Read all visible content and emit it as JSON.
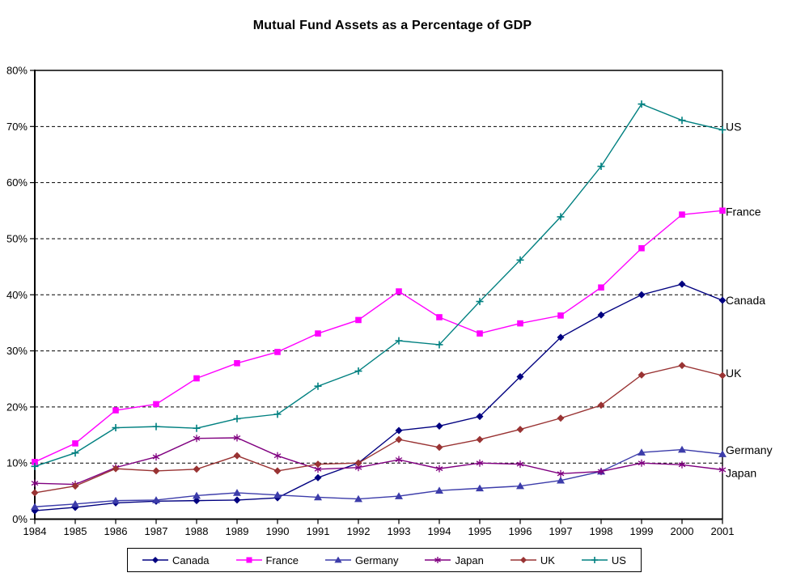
{
  "chart_data": {
    "type": "line",
    "title": "Mutual Fund Assets as a Percentage of GDP",
    "xlabel": "",
    "ylabel": "",
    "categories": [
      "1984",
      "1985",
      "1986",
      "1987",
      "1988",
      "1989",
      "1990",
      "1991",
      "1992",
      "1993",
      "1994",
      "1995",
      "1996",
      "1997",
      "1998",
      "1999",
      "2000",
      "2001"
    ],
    "y_tick_labels": [
      "0%",
      "10%",
      "20%",
      "30%",
      "40%",
      "50%",
      "60%",
      "70%",
      "80%"
    ],
    "ylim": [
      0,
      80
    ],
    "grid": "horizontal-dashed",
    "grid_color": "#000000",
    "background_color": "#FFFFFF",
    "legend_position": "bottom",
    "series": [
      {
        "name": "Canada",
        "color": "#000080",
        "marker": "diamond",
        "values": [
          1.5,
          2.1,
          2.9,
          3.2,
          3.3,
          3.4,
          3.8,
          7.4,
          10.0,
          15.8,
          16.6,
          18.3,
          25.4,
          32.4,
          36.4,
          40.0,
          41.9,
          39.0
        ]
      },
      {
        "name": "France",
        "color": "#FF00FF",
        "marker": "square",
        "values": [
          10.2,
          13.5,
          19.4,
          20.5,
          25.1,
          27.8,
          29.8,
          33.1,
          35.5,
          40.6,
          36.0,
          33.1,
          34.9,
          36.3,
          41.3,
          48.3,
          54.3,
          55.0
        ]
      },
      {
        "name": "Germany",
        "color": "#3C3CAA",
        "marker": "triangle",
        "values": [
          2.2,
          2.7,
          3.3,
          3.4,
          4.2,
          4.7,
          4.3,
          3.9,
          3.6,
          4.1,
          5.1,
          5.5,
          5.9,
          6.9,
          8.5,
          11.9,
          12.4,
          11.6
        ]
      },
      {
        "name": "Japan",
        "color": "#800080",
        "marker": "asterisk",
        "values": [
          6.4,
          6.2,
          9.2,
          11.1,
          14.4,
          14.5,
          11.3,
          8.9,
          9.2,
          10.6,
          9.0,
          10.0,
          9.8,
          8.1,
          8.5,
          10.0,
          9.7,
          8.8
        ]
      },
      {
        "name": "UK",
        "color": "#993333",
        "marker": "diamond",
        "values": [
          4.7,
          5.9,
          9.0,
          8.6,
          8.9,
          11.3,
          8.6,
          9.8,
          10.0,
          14.2,
          12.8,
          14.2,
          16.0,
          18.0,
          20.3,
          25.7,
          27.4,
          25.6
        ]
      },
      {
        "name": "US",
        "color": "#008080",
        "marker": "plus",
        "values": [
          9.4,
          11.8,
          16.3,
          16.5,
          16.2,
          17.9,
          18.7,
          23.7,
          26.4,
          31.8,
          31.1,
          38.8,
          46.2,
          53.9,
          62.9,
          74.0,
          71.1,
          69.4
        ]
      }
    ]
  }
}
